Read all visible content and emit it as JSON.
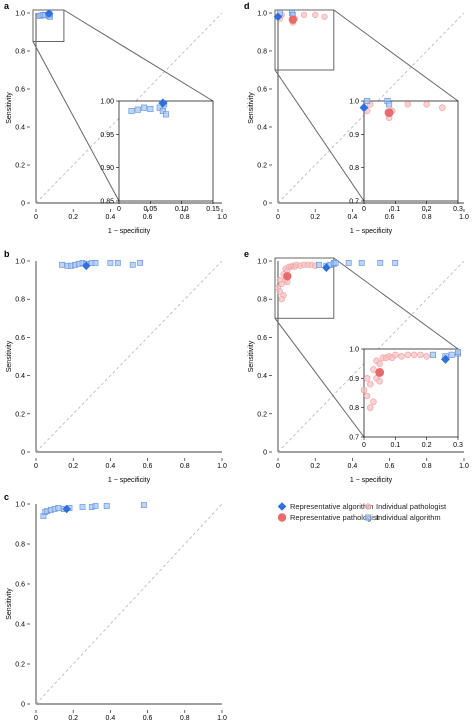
{
  "colors": {
    "algo_fill": "#a8c6f0",
    "algo_stroke": "#5b8fe0",
    "rep_algo": "#2f6fde",
    "path_fill": "#f7c0c0",
    "path_stroke": "#f19b9b",
    "rep_path": "#e86b6b",
    "frame": "#000000",
    "zoom": "#666666",
    "diagonal": "#b5b5b5"
  },
  "legend": {
    "items": [
      {
        "label": "Representative algorithm",
        "icon": "blue-diamond-icon"
      },
      {
        "label": "Representative pathologist",
        "icon": "red-circle-icon"
      },
      {
        "label": "Individual pathologist",
        "icon": "light-red-circle-icon"
      },
      {
        "label": "Individual algorithm",
        "icon": "light-blue-square-icon"
      }
    ]
  },
  "chart_data": [
    {
      "panel": "a",
      "type": "scatter",
      "xlabel": "1 − specificity",
      "ylabel": "Sensitivity",
      "xlim": [
        0,
        1
      ],
      "ylim": [
        0,
        1
      ],
      "xticks": [
        "0",
        "0.2",
        "0.4",
        "0.6",
        "0.8",
        "1.0"
      ],
      "yticks": [
        "0",
        "0.2",
        "0.4",
        "0.6",
        "0.8",
        "1.0"
      ],
      "diagonal": true,
      "series": [
        {
          "name": "Individual algorithm",
          "points": [
            [
              0.02,
              0.985
            ],
            [
              0.03,
              0.987
            ],
            [
              0.04,
              0.99
            ],
            [
              0.05,
              0.988
            ],
            [
              0.065,
              0.99
            ],
            [
              0.07,
              0.985
            ],
            [
              0.075,
              0.98
            ],
            [
              0.072,
              0.995
            ]
          ]
        },
        {
          "name": "Representative algorithm",
          "points": [
            [
              0.07,
              0.997
            ]
          ]
        }
      ],
      "inset": {
        "xlim": [
          0,
          0.15
        ],
        "ylim": [
          0.85,
          1.0
        ],
        "xticks": [
          "0",
          "0.05",
          "0.10",
          "0.15"
        ],
        "yticks": [
          "0.85",
          "0.90",
          "0.95",
          "1.00"
        ]
      }
    },
    {
      "panel": "b",
      "type": "scatter",
      "xlabel": "1 − specificity",
      "ylabel": "Sensitivity",
      "xlim": [
        0,
        1
      ],
      "ylim": [
        0,
        1
      ],
      "xticks": [
        "0",
        "0.2",
        "0.4",
        "0.6",
        "0.8",
        "1.0"
      ],
      "yticks": [
        "0",
        "0.2",
        "0.4",
        "0.6",
        "0.8",
        "1.0"
      ],
      "diagonal": true,
      "series": [
        {
          "name": "Individual algorithm",
          "points": [
            [
              0.14,
              0.98
            ],
            [
              0.17,
              0.975
            ],
            [
              0.19,
              0.975
            ],
            [
              0.21,
              0.98
            ],
            [
              0.23,
              0.985
            ],
            [
              0.25,
              0.99
            ],
            [
              0.27,
              0.985
            ],
            [
              0.3,
              0.99
            ],
            [
              0.32,
              0.99
            ],
            [
              0.4,
              0.99
            ],
            [
              0.44,
              0.99
            ],
            [
              0.52,
              0.98
            ],
            [
              0.56,
              0.99
            ]
          ]
        },
        {
          "name": "Representative algorithm",
          "points": [
            [
              0.27,
              0.975
            ]
          ]
        }
      ]
    },
    {
      "panel": "c",
      "type": "scatter",
      "xlabel": "1 − specificity",
      "ylabel": "Sensitivity",
      "xlim": [
        0,
        1
      ],
      "ylim": [
        0,
        1
      ],
      "xticks": [
        "0",
        "0.2",
        "0.4",
        "0.6",
        "0.8",
        "1.0"
      ],
      "yticks": [
        "0",
        "0.2",
        "0.4",
        "0.6",
        "0.8",
        "1.0"
      ],
      "diagonal": true,
      "series": [
        {
          "name": "Individual algorithm",
          "points": [
            [
              0.04,
              0.94
            ],
            [
              0.05,
              0.96
            ],
            [
              0.06,
              0.965
            ],
            [
              0.08,
              0.97
            ],
            [
              0.1,
              0.975
            ],
            [
              0.12,
              0.98
            ],
            [
              0.15,
              0.975
            ],
            [
              0.18,
              0.98
            ],
            [
              0.25,
              0.985
            ],
            [
              0.3,
              0.985
            ],
            [
              0.32,
              0.99
            ],
            [
              0.38,
              0.99
            ],
            [
              0.58,
              0.995
            ]
          ]
        },
        {
          "name": "Representative algorithm",
          "points": [
            [
              0.165,
              0.975
            ]
          ]
        }
      ]
    },
    {
      "panel": "d",
      "type": "scatter",
      "xlabel": "1 − specificity",
      "ylabel": "Sensitivity",
      "xlim": [
        0,
        1
      ],
      "ylim": [
        0,
        1
      ],
      "xticks": [
        "0",
        "0.2",
        "0.4",
        "0.6",
        "0.8",
        "1.0"
      ],
      "yticks": [
        "0",
        "0.2",
        "0.4",
        "0.6",
        "0.8",
        "1.0"
      ],
      "diagonal": true,
      "series": [
        {
          "name": "Individual pathologist",
          "points": [
            [
              0.01,
              0.97
            ],
            [
              0.02,
              0.99
            ],
            [
              0.08,
              0.95
            ],
            [
              0.09,
              0.97
            ],
            [
              0.14,
              0.99
            ],
            [
              0.2,
              0.99
            ],
            [
              0.25,
              0.98
            ]
          ]
        },
        {
          "name": "Individual algorithm",
          "points": [
            [
              0.01,
              1.0
            ],
            [
              0.075,
              1.0
            ],
            [
              0.08,
              0.99
            ]
          ]
        },
        {
          "name": "Representative pathologist",
          "points": [
            [
              0.08,
              0.965
            ]
          ]
        },
        {
          "name": "Representative algorithm",
          "points": [
            [
              0.0,
              0.98
            ]
          ]
        }
      ],
      "inset": {
        "xlim": [
          0,
          0.3
        ],
        "ylim": [
          0.7,
          1.0
        ],
        "xticks": [
          "0",
          "0.1",
          "0.2",
          "0.3"
        ],
        "yticks": [
          "0.7",
          "0.8",
          "0.9",
          "1.0"
        ]
      }
    },
    {
      "panel": "e",
      "type": "scatter",
      "xlabel": "1 − specificity",
      "ylabel": "Sensitivity",
      "xlim": [
        0,
        1
      ],
      "ylim": [
        0,
        1
      ],
      "xticks": [
        "0",
        "0.2",
        "0.4",
        "0.6",
        "0.8",
        "1.0"
      ],
      "yticks": [
        "0",
        "0.2",
        "0.4",
        "0.6",
        "0.8",
        "1.0"
      ],
      "diagonal": true,
      "series": [
        {
          "name": "Individual pathologist",
          "points": [
            [
              0.0,
              0.86
            ],
            [
              0.01,
              0.84
            ],
            [
              0.01,
              0.9
            ],
            [
              0.02,
              0.88
            ],
            [
              0.03,
              0.93
            ],
            [
              0.04,
              0.96
            ],
            [
              0.04,
              0.9
            ],
            [
              0.05,
              0.95
            ],
            [
              0.05,
              0.89
            ],
            [
              0.06,
              0.97
            ],
            [
              0.07,
              0.97
            ],
            [
              0.08,
              0.975
            ],
            [
              0.09,
              0.97
            ],
            [
              0.1,
              0.98
            ],
            [
              0.12,
              0.975
            ],
            [
              0.14,
              0.98
            ],
            [
              0.16,
              0.98
            ],
            [
              0.18,
              0.98
            ],
            [
              0.2,
              0.975
            ],
            [
              0.03,
              0.82
            ],
            [
              0.02,
              0.8
            ]
          ]
        },
        {
          "name": "Individual algorithm",
          "points": [
            [
              0.22,
              0.98
            ],
            [
              0.26,
              0.975
            ],
            [
              0.28,
              0.98
            ],
            [
              0.3,
              0.985
            ],
            [
              0.3,
              0.99
            ],
            [
              0.31,
              0.99
            ],
            [
              0.38,
              0.99
            ],
            [
              0.45,
              0.99
            ],
            [
              0.55,
              0.99
            ],
            [
              0.63,
              0.99
            ]
          ]
        },
        {
          "name": "Representative pathologist",
          "points": [
            [
              0.05,
              0.92
            ]
          ]
        },
        {
          "name": "Representative algorithm",
          "points": [
            [
              0.26,
              0.965
            ]
          ]
        }
      ],
      "inset": {
        "xlim": [
          0,
          0.3
        ],
        "ylim": [
          0.7,
          1.0
        ],
        "xticks": [
          "0",
          "0.1",
          "0.2",
          "0.3"
        ],
        "yticks": [
          "0.7",
          "0.8",
          "0.9",
          "1.0"
        ]
      }
    }
  ]
}
